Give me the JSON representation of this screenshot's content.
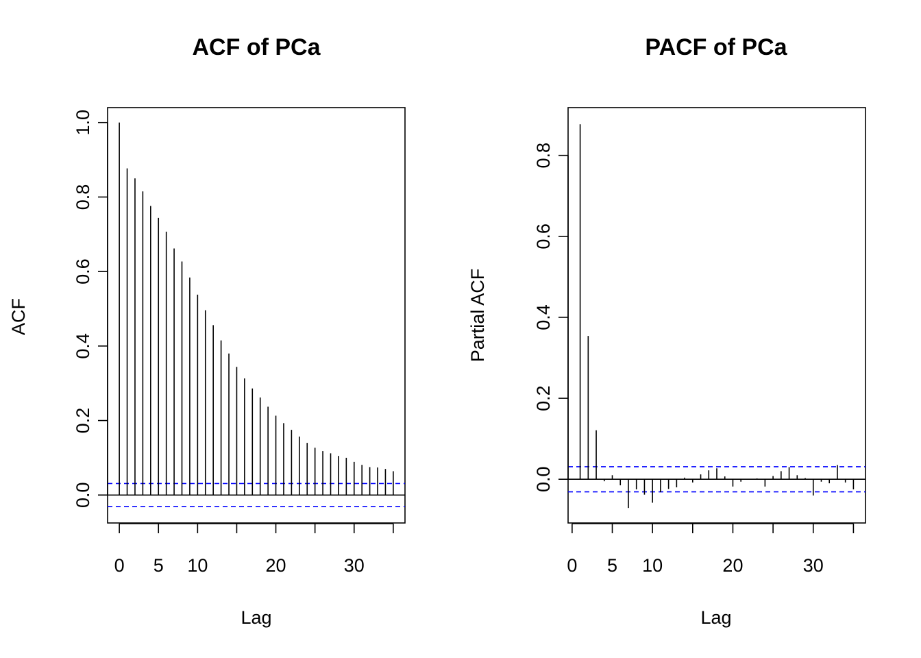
{
  "chart_data": [
    {
      "type": "bar",
      "title": "ACF of PCa",
      "xlabel": "Lag",
      "ylabel": "ACF",
      "xlim": [
        -1.5,
        36.5
      ],
      "ylim": [
        -0.075,
        1.04
      ],
      "xticks": [
        0,
        5,
        10,
        20,
        30
      ],
      "xtick_marks": [
        0,
        5,
        10,
        15,
        20,
        25,
        30,
        35
      ],
      "yticks": [
        0.0,
        0.2,
        0.4,
        0.6,
        0.8,
        1.0
      ],
      "ytick_labels": [
        "0.0",
        "0.2",
        "0.4",
        "0.6",
        "0.8",
        "1.0"
      ],
      "grid": false,
      "confidence_band": 0.031,
      "confidence_color": "#0000ff",
      "x": [
        0,
        1,
        2,
        3,
        4,
        5,
        6,
        7,
        8,
        9,
        10,
        11,
        12,
        13,
        14,
        15,
        16,
        17,
        18,
        19,
        20,
        21,
        22,
        23,
        24,
        25,
        26,
        27,
        28,
        29,
        30,
        31,
        32,
        33,
        34,
        35
      ],
      "values": [
        1.0,
        0.877,
        0.85,
        0.815,
        0.776,
        0.744,
        0.707,
        0.662,
        0.627,
        0.584,
        0.538,
        0.496,
        0.456,
        0.415,
        0.38,
        0.344,
        0.313,
        0.286,
        0.262,
        0.237,
        0.213,
        0.193,
        0.175,
        0.157,
        0.14,
        0.127,
        0.118,
        0.112,
        0.105,
        0.1,
        0.089,
        0.081,
        0.075,
        0.074,
        0.07,
        0.064
      ]
    },
    {
      "type": "bar",
      "title": "PACF of PCa",
      "xlabel": "Lag",
      "ylabel": "Partial ACF",
      "xlim": [
        -0.5,
        36.5
      ],
      "ylim": [
        -0.108,
        0.918
      ],
      "xticks": [
        0,
        5,
        10,
        20,
        30
      ],
      "xtick_marks": [
        0,
        5,
        10,
        15,
        20,
        25,
        30,
        35
      ],
      "yticks": [
        0.0,
        0.2,
        0.4,
        0.6,
        0.8
      ],
      "ytick_labels": [
        "0.0",
        "0.2",
        "0.4",
        "0.6",
        "0.8"
      ],
      "grid": false,
      "confidence_band": 0.031,
      "confidence_color": "#0000ff",
      "x": [
        1,
        2,
        3,
        4,
        5,
        6,
        7,
        8,
        9,
        10,
        11,
        12,
        13,
        14,
        15,
        16,
        17,
        18,
        19,
        20,
        21,
        22,
        23,
        24,
        25,
        26,
        27,
        28,
        29,
        30,
        31,
        32,
        33,
        34,
        35
      ],
      "values": [
        0.877,
        0.354,
        0.121,
        -0.005,
        0.01,
        -0.015,
        -0.071,
        -0.025,
        -0.038,
        -0.058,
        -0.032,
        -0.024,
        -0.02,
        0.004,
        -0.008,
        0.012,
        0.022,
        0.027,
        0.007,
        -0.018,
        -0.006,
        0.001,
        0.002,
        -0.018,
        0.008,
        0.02,
        0.03,
        0.01,
        0.003,
        -0.04,
        -0.006,
        -0.01,
        0.035,
        -0.008,
        -0.025
      ]
    }
  ]
}
